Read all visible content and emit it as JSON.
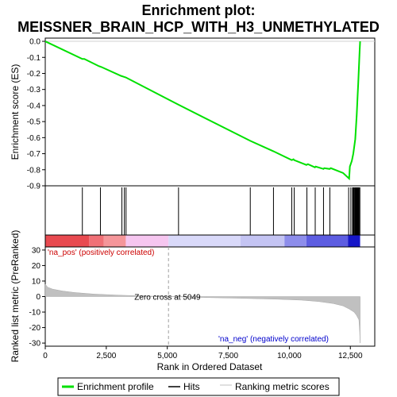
{
  "chart_data": {
    "type": "line",
    "title_line1": "Enrichment plot:",
    "title_line2": "MEISSNER_BRAIN_HCP_WITH_H3_UNMETHYLATED",
    "xlabel": "Rank in Ordered Dataset",
    "top_ylabel": "Enrichment score (ES)",
    "bottom_ylabel": "Ranked list metric (PreRanked)",
    "xlim": [
      0,
      13500
    ],
    "top_ylim": [
      -0.9,
      0.02
    ],
    "bottom_ylim": [
      -32,
      32
    ],
    "x_ticks": [
      0,
      2500,
      5000,
      7500,
      10000,
      12500
    ],
    "x_tick_labels": [
      "0",
      "2,500",
      "5,000",
      "7,500",
      "10,000",
      "12,500"
    ],
    "top_y_ticks": [
      0.0,
      -0.1,
      -0.2,
      -0.3,
      -0.4,
      -0.5,
      -0.6,
      -0.7,
      -0.8,
      -0.9
    ],
    "top_y_tick_labels": [
      "0.0",
      "-0.1",
      "-0.2",
      "-0.3",
      "-0.4",
      "-0.5",
      "-0.6",
      "-0.7",
      "-0.8",
      "-0.9"
    ],
    "bottom_y_ticks": [
      30,
      20,
      10,
      0,
      -10,
      -20,
      -30
    ],
    "bottom_y_tick_labels": [
      "30",
      "20",
      "10",
      "0",
      "-10",
      "-20",
      "-30"
    ],
    "enrichment_profile": {
      "x": [
        0,
        1520,
        1600,
        2200,
        2300,
        3100,
        3240,
        3300,
        5460,
        8400,
        9350,
        10100,
        10170,
        10200,
        10700,
        10760,
        11050,
        11080,
        11400,
        11430,
        11650,
        11700,
        12200,
        12450,
        12480,
        12560,
        12620,
        12660,
        12700,
        12720,
        12740,
        12760,
        12780,
        12800,
        12820,
        12840,
        12860,
        12880,
        12900
      ],
      "y": [
        0.0,
        -0.11,
        -0.11,
        -0.155,
        -0.16,
        -0.215,
        -0.222,
        -0.225,
        -0.395,
        -0.62,
        -0.685,
        -0.74,
        -0.735,
        -0.74,
        -0.77,
        -0.765,
        -0.785,
        -0.78,
        -0.795,
        -0.79,
        -0.795,
        -0.79,
        -0.82,
        -0.855,
        -0.78,
        -0.745,
        -0.7,
        -0.655,
        -0.61,
        -0.56,
        -0.51,
        -0.46,
        -0.395,
        -0.33,
        -0.27,
        -0.2,
        -0.13,
        -0.06,
        0.0
      ]
    },
    "hits_x": [
      1520,
      2260,
      3140,
      3240,
      3310,
      5460,
      8400,
      9350,
      10100,
      10200,
      10720,
      11060,
      11400,
      11660,
      12430,
      12520,
      12590,
      12620,
      12650,
      12680,
      12700,
      12720,
      12740,
      12760,
      12775,
      12790,
      12805,
      12820,
      12840,
      12860,
      12890
    ],
    "zero_cross_label": "Zero cross at 5049",
    "zero_cross_x": 5049,
    "pos_label": "'na_pos' (positively correlated)",
    "neg_label": "'na_neg' (negatively correlated)",
    "metric_curve": {
      "x": [
        0,
        100,
        300,
        700,
        1200,
        2000,
        3000,
        4000,
        5049,
        6500,
        8000,
        9500,
        10500,
        11200,
        11800,
        12200,
        12450,
        12650,
        12750,
        12850,
        12880,
        12900
      ],
      "y": [
        8,
        6,
        4.8,
        3.6,
        2.6,
        1.6,
        0.9,
        0.4,
        0,
        -0.6,
        -1.1,
        -1.7,
        -2.3,
        -3.2,
        -4.5,
        -6,
        -8,
        -10,
        -12,
        -15,
        -22,
        -30
      ]
    },
    "heat_segments": [
      {
        "x0": 0,
        "x1": 1800,
        "color": "#e84a50"
      },
      {
        "x0": 1800,
        "x1": 2400,
        "color": "#f07076"
      },
      {
        "x0": 2400,
        "x1": 3300,
        "color": "#f5969a"
      },
      {
        "x0": 3300,
        "x1": 5049,
        "color": "#f6c6f0"
      },
      {
        "x0": 5049,
        "x1": 8000,
        "color": "#d9d9f9"
      },
      {
        "x0": 8000,
        "x1": 9800,
        "color": "#c4c4f3"
      },
      {
        "x0": 9800,
        "x1": 10700,
        "color": "#8d8deb"
      },
      {
        "x0": 10700,
        "x1": 12400,
        "color": "#5d5de1"
      },
      {
        "x0": 12400,
        "x1": 12900,
        "color": "#1616c8"
      }
    ],
    "colors": {
      "profile": "#00e000",
      "hits": "#000000",
      "metric_fill": "#c0c0c0",
      "pos_label": "#cc0000",
      "neg_label": "#0000cc"
    }
  },
  "legend": {
    "items": [
      "Enrichment profile",
      "Hits",
      "Ranking metric scores"
    ]
  }
}
